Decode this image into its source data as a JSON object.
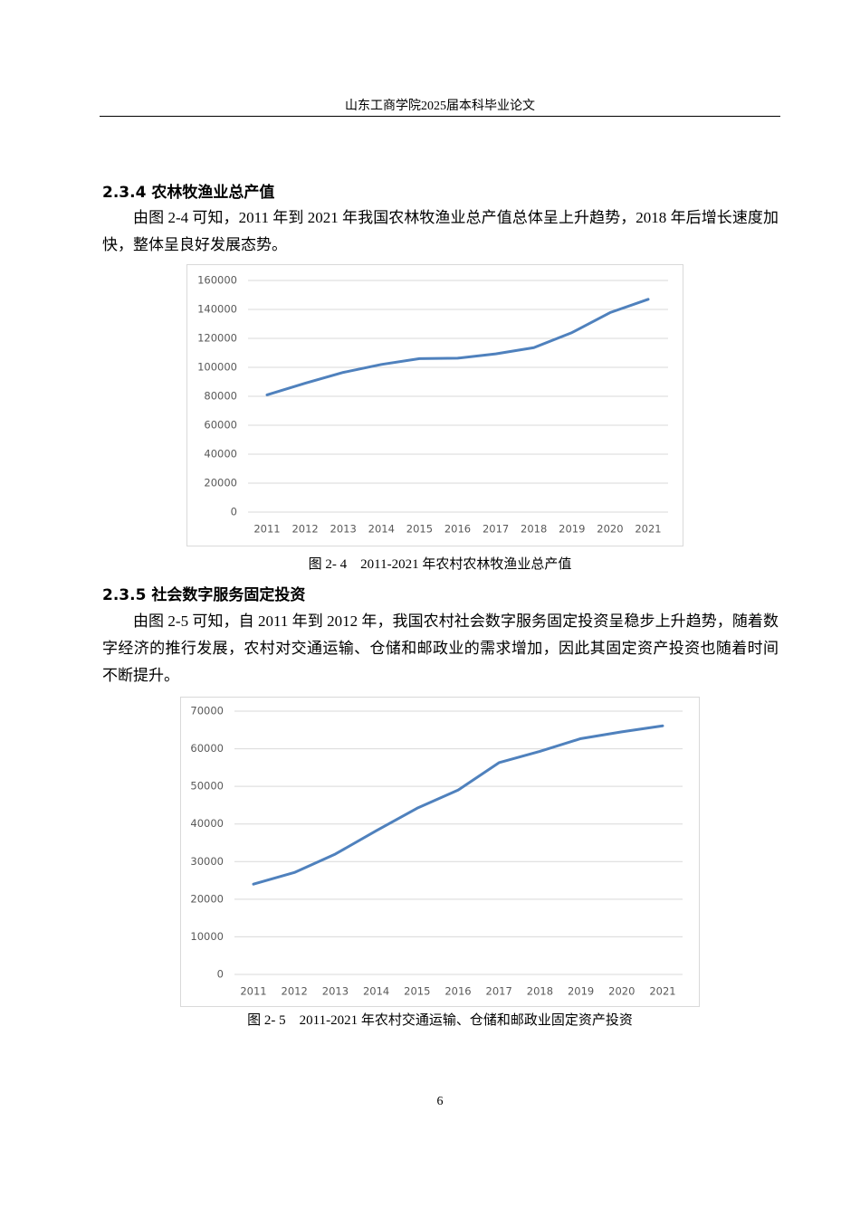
{
  "header": "山东工商学院2025届本科毕业论文",
  "sections": [
    {
      "heading": "2.3.4 农林牧渔业总产值",
      "paragraph": "由图 2-4 可知，2011 年到 2021 年我国农林牧渔业总产值总体呈上升趋势，2018 年后增长速度加快，整体呈良好发展态势。",
      "figure": {
        "chart_data": {
          "type": "line",
          "categories": [
            "2011",
            "2012",
            "2013",
            "2014",
            "2015",
            "2016",
            "2017",
            "2018",
            "2019",
            "2020",
            "2021"
          ],
          "values": [
            81000,
            89000,
            96500,
            102000,
            106000,
            106300,
            109300,
            113600,
            124000,
            137800,
            147000
          ],
          "color": "#4f81bd",
          "ylim": [
            0,
            160000
          ],
          "yticks": [
            0,
            20000,
            40000,
            60000,
            80000,
            100000,
            120000,
            140000,
            160000
          ],
          "grid": true
        },
        "caption": "图 2- 4　2011-2021 年农村农林牧渔业总产值"
      }
    },
    {
      "heading": "2.3.5 社会数字服务固定投资",
      "paragraph": "由图 2-5 可知，自 2011 年到 2012 年，我国农村社会数字服务固定投资呈稳步上升趋势，随着数字经济的推行发展，农村对交通运输、仓储和邮政业的需求增加，因此其固定资产投资也随着时间不断提升。",
      "figure": {
        "chart_data": {
          "type": "line",
          "categories": [
            "2011",
            "2012",
            "2013",
            "2014",
            "2015",
            "2016",
            "2017",
            "2018",
            "2019",
            "2020",
            "2021"
          ],
          "values": [
            24000,
            27100,
            32000,
            38200,
            44200,
            49000,
            56300,
            59300,
            62700,
            64500,
            66100
          ],
          "color": "#4f81bd",
          "ylim": [
            0,
            70000
          ],
          "yticks": [
            0,
            10000,
            20000,
            30000,
            40000,
            50000,
            60000,
            70000
          ],
          "grid": true
        },
        "caption": "图 2- 5　2011-2021 年农村交通运输、仓储和邮政业固定资产投资"
      }
    }
  ],
  "page_number": "6"
}
